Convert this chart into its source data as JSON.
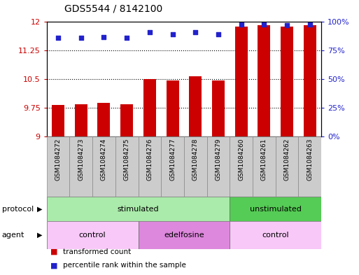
{
  "title": "GDS5544 / 8142100",
  "samples": [
    "GSM1084272",
    "GSM1084273",
    "GSM1084274",
    "GSM1084275",
    "GSM1084276",
    "GSM1084277",
    "GSM1084278",
    "GSM1084279",
    "GSM1084260",
    "GSM1084261",
    "GSM1084262",
    "GSM1084263"
  ],
  "transformed_counts": [
    9.82,
    9.83,
    9.88,
    9.84,
    10.5,
    10.46,
    10.57,
    10.47,
    11.88,
    11.92,
    11.88,
    11.92
  ],
  "percentile_ranks": [
    86,
    86,
    87,
    86,
    91,
    89,
    91,
    89,
    98,
    98,
    97,
    98
  ],
  "ylim_left": [
    9,
    12
  ],
  "ylim_right": [
    0,
    100
  ],
  "yticks_left": [
    9,
    9.75,
    10.5,
    11.25,
    12
  ],
  "ytick_labels_left": [
    "9",
    "9.75",
    "10.5",
    "11.25",
    "12"
  ],
  "yticks_right": [
    0,
    25,
    50,
    75,
    100
  ],
  "ytick_labels_right": [
    "0%",
    "25%",
    "50%",
    "75%",
    "100%"
  ],
  "bar_color": "#cc0000",
  "dot_color": "#2222cc",
  "protocol_groups": [
    {
      "label": "stimulated",
      "start": 0,
      "end": 8,
      "color": "#aaeaaa"
    },
    {
      "label": "unstimulated",
      "start": 8,
      "end": 12,
      "color": "#55cc55"
    }
  ],
  "agent_groups": [
    {
      "label": "control",
      "start": 0,
      "end": 4,
      "color": "#f8c8f8"
    },
    {
      "label": "edelfosine",
      "start": 4,
      "end": 8,
      "color": "#dd88dd"
    },
    {
      "label": "control",
      "start": 8,
      "end": 12,
      "color": "#f8c8f8"
    }
  ],
  "legend_items": [
    {
      "label": "transformed count",
      "color": "#cc0000"
    },
    {
      "label": "percentile rank within the sample",
      "color": "#2222cc"
    }
  ],
  "protocol_label": "protocol",
  "agent_label": "agent",
  "title_fontsize": 10,
  "tick_fontsize": 8,
  "sample_fontsize": 6.5,
  "label_fontsize": 8,
  "legend_fontsize": 7.5
}
